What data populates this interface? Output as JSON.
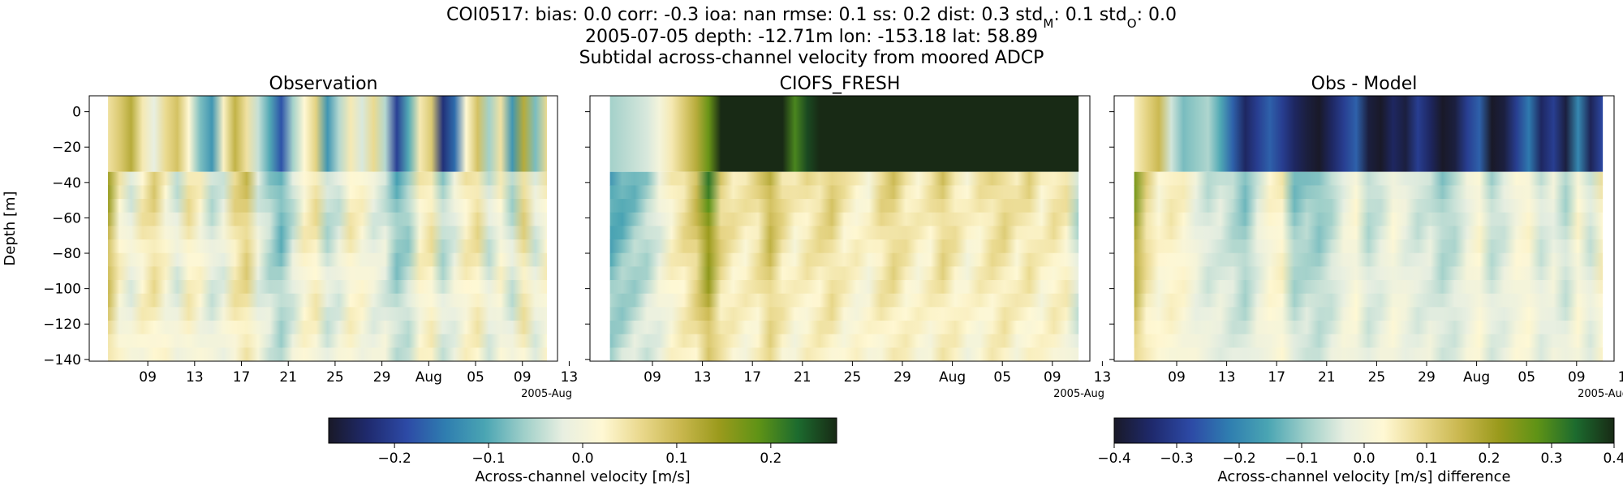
{
  "figure": {
    "title_prefix": "COI0517: bias: 0.0  corr: -0.3  ioa: nan  rmse: 0.1  ss: 0.2  dist: 0.3  std",
    "title_subM": "M",
    "title_mid": ": 0.1  std",
    "title_subO": "O",
    "title_suffix": ": 0.0",
    "title_line2": "2005-07-05 depth: -12.71m lon: -153.18 lat: 58.89",
    "title_line3": "Subtidal across-channel velocity from moored ADCP"
  },
  "colors": {
    "deep": [
      "#191928",
      "#1f2a6e",
      "#2d4aa6",
      "#2f7eb0",
      "#4aa5b3",
      "#9fcfc9",
      "#e8efe1",
      "#fff8d4",
      "#e9d88c",
      "#c9b74e",
      "#9a9a1c",
      "#5f9316",
      "#1c6b2e",
      "#182a15"
    ]
  },
  "chart_data": [
    {
      "type": "heatmap",
      "title": "Observation",
      "ylabel": "Depth [m]",
      "xlabel": "",
      "x_ticks": [
        "09",
        "13",
        "17",
        "21",
        "25",
        "29",
        "Aug",
        "05",
        "09",
        "13"
      ],
      "x_offset_label": "2005-Aug",
      "y_ticks": [
        0,
        -20,
        -40,
        -60,
        -80,
        -100,
        -120,
        -140
      ],
      "ylim": [
        -141,
        9
      ],
      "x_range_days": [
        4.0,
        44.0
      ],
      "data_x_range": [
        5.6,
        43.1
      ],
      "vmin": -0.27,
      "vmax": 0.27,
      "upper_band_depth": [
        -34,
        9
      ],
      "surface_profile": [
        0.05,
        0.08,
        0.12,
        0.04,
        -0.02,
        0.06,
        0.09,
        0.02,
        -0.08,
        -0.12,
        0.03,
        0.11,
        0.05,
        -0.04,
        -0.1,
        -0.18,
        -0.06,
        0.02,
        0.07,
        -0.12,
        -0.05,
        0.04,
        -0.03,
        0.06,
        -0.05,
        -0.2,
        -0.1,
        0.04,
        0.08,
        -0.22,
        -0.16,
        0.02,
        0.09,
        -0.06,
        0.05,
        -0.12,
        0.12,
        -0.08,
        0.06
      ],
      "deep_profile": [
        0.14,
        0.03,
        -0.02,
        0.04,
        0.07,
        0.02,
        -0.03,
        0.05,
        0.02,
        -0.04,
        -0.02,
        0.06,
        0.09,
        -0.02,
        -0.06,
        -0.1,
        -0.04,
        0.03,
        0.05,
        -0.05,
        -0.03,
        0.04,
        0.02,
        -0.02,
        -0.03,
        -0.09,
        -0.07,
        0.03,
        0.05,
        -0.06,
        -0.02,
        0.04,
        0.06,
        -0.04,
        0.02,
        -0.05,
        0.07,
        -0.03,
        0.03
      ]
    },
    {
      "type": "heatmap",
      "title": "CIOFS_FRESH",
      "ylabel": "",
      "xlabel": "",
      "x_ticks": [
        "09",
        "13",
        "17",
        "21",
        "25",
        "29",
        "Aug",
        "05",
        "09",
        "13"
      ],
      "x_offset_label": "2005-Aug",
      "y_ticks": [
        0,
        -20,
        -40,
        -60,
        -80,
        -100,
        -120,
        -140
      ],
      "ylim": [
        -141,
        9
      ],
      "x_range_days": [
        4.0,
        44.0
      ],
      "data_x_range": [
        5.6,
        43.1
      ],
      "vmin": -0.27,
      "vmax": 0.27,
      "upper_band_depth": [
        -34,
        9
      ],
      "surface_profile": [
        -0.06,
        -0.05,
        -0.04,
        -0.03,
        0.0,
        0.04,
        0.08,
        0.12,
        0.18,
        0.28,
        0.3,
        0.3,
        0.3,
        0.3,
        0.3,
        0.2,
        0.25,
        0.3,
        0.3,
        0.3,
        0.3,
        0.3,
        0.3,
        0.3,
        0.3,
        0.3,
        0.3,
        0.28,
        0.3,
        0.3,
        0.3,
        0.3,
        0.3,
        0.3,
        0.3,
        0.3,
        0.3,
        0.3,
        0.3
      ],
      "deep_profile": [
        -0.12,
        -0.1,
        -0.08,
        -0.06,
        -0.02,
        0.03,
        0.06,
        0.1,
        0.2,
        0.08,
        0.05,
        0.04,
        0.06,
        0.12,
        0.06,
        0.03,
        0.05,
        0.06,
        0.08,
        0.04,
        0.03,
        0.02,
        0.06,
        0.08,
        0.05,
        0.03,
        0.04,
        0.08,
        0.05,
        0.02,
        0.04,
        0.06,
        0.07,
        0.04,
        0.06,
        0.03,
        0.05,
        0.04,
        -0.05
      ]
    },
    {
      "type": "heatmap",
      "title": "Obs - Model",
      "ylabel": "",
      "xlabel": "",
      "x_ticks": [
        "09",
        "13",
        "17",
        "21",
        "25",
        "29",
        "Aug",
        "05",
        "09",
        "13"
      ],
      "x_offset_label": "2005-Aug",
      "y_ticks": [
        0,
        -20,
        -40,
        -60,
        -80,
        -100,
        -120,
        -140
      ],
      "ylim": [
        -141,
        9
      ],
      "x_range_days": [
        4.0,
        44.0
      ],
      "data_x_range": [
        5.6,
        43.1
      ],
      "vmin": -0.4,
      "vmax": 0.4,
      "upper_band_depth": [
        -34,
        9
      ],
      "surface_profile": [
        0.05,
        0.1,
        0.15,
        -0.05,
        -0.12,
        -0.1,
        -0.08,
        -0.15,
        -0.25,
        -0.35,
        -0.3,
        -0.25,
        -0.3,
        -0.35,
        -0.38,
        -0.4,
        -0.35,
        -0.3,
        -0.25,
        -0.38,
        -0.4,
        -0.35,
        -0.38,
        -0.3,
        -0.35,
        -0.4,
        -0.38,
        -0.3,
        -0.25,
        -0.4,
        -0.38,
        -0.3,
        -0.22,
        -0.35,
        -0.3,
        -0.38,
        -0.2,
        -0.36,
        -0.28
      ],
      "deep_profile": [
        0.25,
        0.1,
        0.03,
        0.06,
        0.04,
        -0.02,
        -0.06,
        -0.05,
        -0.08,
        -0.12,
        -0.04,
        0.03,
        0.05,
        -0.12,
        -0.1,
        -0.12,
        -0.08,
        -0.02,
        0.02,
        -0.08,
        -0.05,
        0.01,
        -0.03,
        -0.06,
        -0.05,
        -0.1,
        -0.08,
        -0.02,
        0.03,
        -0.08,
        -0.05,
        0.01,
        0.03,
        -0.06,
        -0.02,
        -0.08,
        0.03,
        -0.06,
        0.06
      ]
    }
  ],
  "colorbars": [
    {
      "label": "Across-channel velocity [m/s]",
      "ticks": [
        "−0.2",
        "−0.1",
        "0.0",
        "0.1",
        "0.2"
      ],
      "tick_values": [
        -0.2,
        -0.1,
        0.0,
        0.1,
        0.2
      ],
      "vmin": -0.27,
      "vmax": 0.27
    },
    {
      "label": "Across-channel velocity [m/s] difference",
      "ticks": [
        "−0.4",
        "−0.3",
        "−0.2",
        "−0.1",
        "0.0",
        "0.1",
        "0.2",
        "0.3",
        "0.4"
      ],
      "tick_values": [
        -0.4,
        -0.3,
        -0.2,
        -0.1,
        0.0,
        0.1,
        0.2,
        0.3,
        0.4
      ],
      "vmin": -0.4,
      "vmax": 0.4
    }
  ]
}
